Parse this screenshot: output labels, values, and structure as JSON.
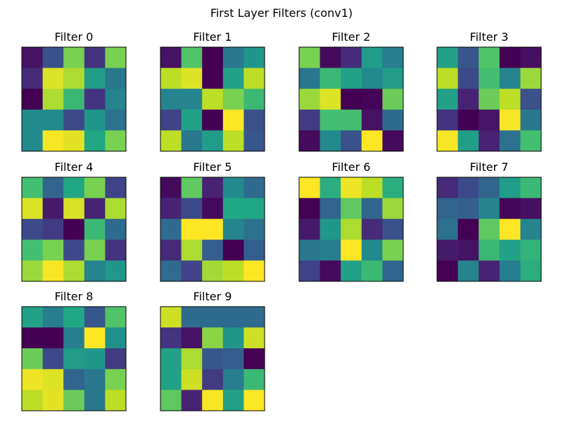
{
  "chart_data": {
    "type": "heatmap",
    "title": "First Layer Filters (conv1)",
    "colormap": "viridis",
    "value_range": [
      -1,
      1
    ],
    "axes_visible": false,
    "panels": [
      {
        "title": "Filter 0",
        "values": [
          [
            -0.9,
            -0.5,
            0.6,
            -0.7,
            0.6
          ],
          [
            -0.75,
            0.9,
            0.75,
            0.1,
            -0.2
          ],
          [
            -1.0,
            0.75,
            0.35,
            -0.7,
            -0.1
          ],
          [
            -0.05,
            -0.05,
            -0.55,
            0.05,
            -0.25
          ],
          [
            -0.05,
            0.98,
            0.92,
            0.2,
            0.6
          ]
        ]
      },
      {
        "title": "Filter 1",
        "values": [
          [
            -0.9,
            0.45,
            -1.0,
            -0.2,
            0.05
          ],
          [
            0.8,
            0.9,
            -1.0,
            0.15,
            0.8
          ],
          [
            -0.1,
            -0.1,
            0.8,
            0.6,
            0.35
          ],
          [
            -0.6,
            0.15,
            -1.0,
            1.0,
            -0.5
          ],
          [
            0.8,
            -0.2,
            0.1,
            0.8,
            -0.45
          ]
        ]
      },
      {
        "title": "Filter 2",
        "values": [
          [
            0.6,
            -0.95,
            -0.75,
            0.1,
            -0.15
          ],
          [
            -0.2,
            0.35,
            0.15,
            -0.05,
            0.1
          ],
          [
            0.7,
            0.9,
            -1.0,
            -0.98,
            0.55
          ],
          [
            -0.65,
            0.4,
            0.4,
            -0.9,
            -0.3
          ],
          [
            -0.95,
            -0.05,
            -0.5,
            1.0,
            -0.95
          ]
        ]
      },
      {
        "title": "Filter 3",
        "values": [
          [
            0.15,
            -0.45,
            0.45,
            -1.0,
            -0.92
          ],
          [
            0.8,
            -0.55,
            0.4,
            -0.1,
            0.7
          ],
          [
            0.15,
            -0.8,
            0.55,
            0.8,
            -0.5
          ],
          [
            -0.7,
            -1.0,
            -0.88,
            0.98,
            -0.2
          ],
          [
            0.98,
            0.12,
            -0.8,
            -0.25,
            0.4
          ]
        ]
      },
      {
        "title": "Filter 4",
        "values": [
          [
            0.4,
            -0.35,
            0.2,
            0.6,
            -0.6
          ],
          [
            0.9,
            -0.85,
            0.88,
            -0.8,
            0.75
          ],
          [
            -0.55,
            -0.65,
            -1.0,
            0.35,
            -0.3
          ],
          [
            0.4,
            0.6,
            -0.55,
            0.6,
            -0.7
          ],
          [
            0.7,
            0.98,
            0.75,
            -0.1,
            0.05
          ]
        ]
      },
      {
        "title": "Filter 5",
        "values": [
          [
            -0.95,
            0.5,
            -0.8,
            -0.05,
            -0.3
          ],
          [
            -0.8,
            -0.55,
            -0.95,
            0.2,
            0.2
          ],
          [
            -0.3,
            1.0,
            1.0,
            -0.1,
            -0.25
          ],
          [
            -0.75,
            0.75,
            -0.4,
            -1.0,
            -0.4
          ],
          [
            -0.3,
            -0.6,
            0.72,
            0.8,
            1.0
          ]
        ]
      },
      {
        "title": "Filter 6",
        "values": [
          [
            1.0,
            0.25,
            0.95,
            0.8,
            0.25
          ],
          [
            -1.0,
            -0.35,
            0.5,
            -0.35,
            0.7
          ],
          [
            -0.85,
            0.05,
            0.75,
            -0.75,
            -0.5
          ],
          [
            -0.2,
            -0.15,
            1.0,
            -0.05,
            0.6
          ],
          [
            -0.6,
            -0.95,
            0.15,
            0.35,
            -0.35
          ]
        ]
      },
      {
        "title": "Filter 7",
        "values": [
          [
            -0.75,
            -0.55,
            -0.35,
            0.1,
            0.35
          ],
          [
            -0.35,
            -0.4,
            -0.1,
            -0.98,
            -0.92
          ],
          [
            -0.25,
            -1.0,
            0.5,
            1.0,
            -0.1
          ],
          [
            -0.85,
            -0.9,
            0.35,
            0.15,
            0.3
          ],
          [
            -1.0,
            -0.1,
            -0.8,
            -0.15,
            0.25
          ]
        ]
      },
      {
        "title": "Filter 8",
        "values": [
          [
            0.15,
            -0.15,
            0.2,
            -0.45,
            0.45
          ],
          [
            -1.0,
            -1.0,
            -0.15,
            1.0,
            0.0
          ],
          [
            0.55,
            -0.55,
            0.1,
            0.05,
            -0.65
          ],
          [
            0.95,
            0.9,
            -0.35,
            -0.2,
            0.6
          ],
          [
            0.8,
            0.92,
            0.55,
            -0.2,
            0.8
          ]
        ]
      },
      {
        "title": "Filter 9",
        "values": [
          [
            0.85,
            -0.3,
            -0.3,
            -0.3,
            -0.3
          ],
          [
            -0.7,
            -0.9,
            0.65,
            0.05,
            0.85
          ],
          [
            0.15,
            0.75,
            -0.45,
            -0.4,
            -1.0
          ],
          [
            0.15,
            0.85,
            -0.65,
            -0.15,
            0.35
          ],
          [
            0.5,
            -0.8,
            0.98,
            0.15,
            1.0
          ]
        ]
      }
    ]
  }
}
